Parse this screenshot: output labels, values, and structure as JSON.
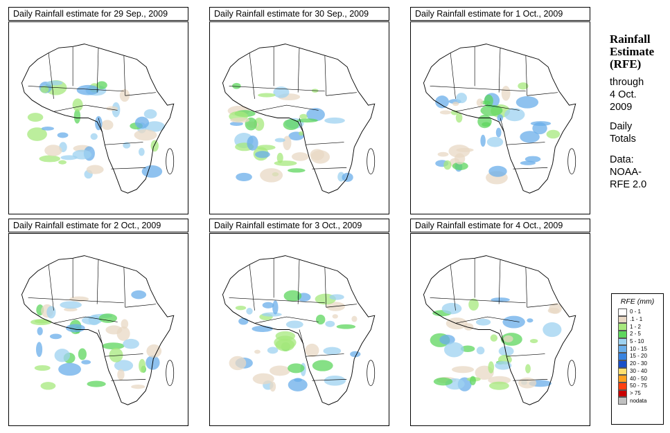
{
  "panels": [
    {
      "title": "Daily Rainfall estimate for  29 Sep., 2009"
    },
    {
      "title": "Daily Rainfall estimate for  30 Sep., 2009"
    },
    {
      "title": "Daily Rainfall estimate for  1 Oct., 2009"
    },
    {
      "title": "Daily Rainfall estimate for  2 Oct., 2009"
    },
    {
      "title": "Daily Rainfall estimate for  3 Oct., 2009"
    },
    {
      "title": "Daily Rainfall estimate for  4 Oct., 2009"
    }
  ],
  "side": {
    "title_line1": "Rainfall",
    "title_line2": "Estimate",
    "title_line3": "(RFE)",
    "through": "through",
    "date_line1": "4 Oct.",
    "date_line2": "2009",
    "daily": "Daily",
    "totals": "Totals",
    "data_label": "Data:",
    "source_line1": "NOAA-",
    "source_line2": "RFE 2.0"
  },
  "legend": {
    "title": "RFE (mm)",
    "items": [
      {
        "label": "0 - 1",
        "color": "#ffffff"
      },
      {
        "label": ".1 - 1",
        "color": "#e8d8c4"
      },
      {
        "label": "1 - 2",
        "color": "#a6e87c"
      },
      {
        "label": "2 - 5",
        "color": "#5ed65e"
      },
      {
        "label": "5 - 10",
        "color": "#9ed2f0"
      },
      {
        "label": "10 - 15",
        "color": "#6aaeea"
      },
      {
        "label": "15 - 20",
        "color": "#3a84e0"
      },
      {
        "label": "20 - 30",
        "color": "#1a50c8"
      },
      {
        "label": "30 - 40",
        "color": "#ffe070"
      },
      {
        "label": "40 - 50",
        "color": "#ffa020"
      },
      {
        "label": "50 - 75",
        "color": "#ff4010"
      },
      {
        "label": "> 75",
        "color": "#c80000"
      },
      {
        "label": "nodata",
        "color": "#c0c0c0"
      }
    ]
  }
}
